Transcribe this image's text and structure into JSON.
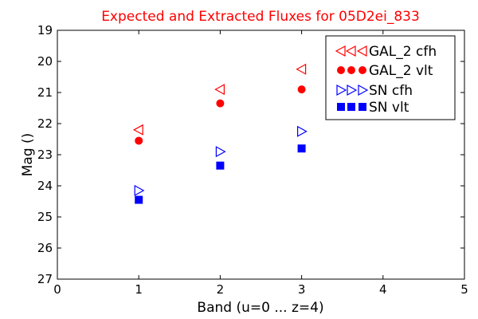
{
  "chart_data": {
    "type": "scatter",
    "title": "Expected and Extracted Fluxes for 05D2ei_833",
    "xlabel": "Band (u=0 ... z=4)",
    "ylabel": "Mag ()",
    "xlim": [
      0,
      5
    ],
    "ylim": [
      27,
      19
    ],
    "y_axis_inverted": true,
    "grid": false,
    "legend_position": "top-right",
    "x_ticks": [
      "0",
      "1",
      "2",
      "3",
      "4",
      "5"
    ],
    "y_ticks": [
      "19",
      "20",
      "21",
      "22",
      "23",
      "24",
      "25",
      "26",
      "27"
    ],
    "series": [
      {
        "name": "GAL_2 cfh",
        "marker": "triangle-left",
        "filled": false,
        "color": "#ff0000",
        "points": [
          {
            "x": 1,
            "y": 22.2
          },
          {
            "x": 2,
            "y": 20.9
          },
          {
            "x": 3,
            "y": 20.25
          }
        ]
      },
      {
        "name": "GAL_2 vlt",
        "marker": "circle",
        "filled": true,
        "color": "#ff0000",
        "points": [
          {
            "x": 1,
            "y": 22.55
          },
          {
            "x": 2,
            "y": 21.35
          },
          {
            "x": 3,
            "y": 20.9
          }
        ]
      },
      {
        "name": "SN cfh",
        "marker": "triangle-right",
        "filled": false,
        "color": "#0000ff",
        "points": [
          {
            "x": 1,
            "y": 24.15
          },
          {
            "x": 2,
            "y": 22.9
          },
          {
            "x": 3,
            "y": 22.25
          }
        ]
      },
      {
        "name": "SN vlt",
        "marker": "square",
        "filled": true,
        "color": "#0000ff",
        "points": [
          {
            "x": 1,
            "y": 24.45
          },
          {
            "x": 2,
            "y": 23.35
          },
          {
            "x": 3,
            "y": 22.8
          }
        ]
      }
    ]
  },
  "colors": {
    "title": "#ff0000"
  }
}
